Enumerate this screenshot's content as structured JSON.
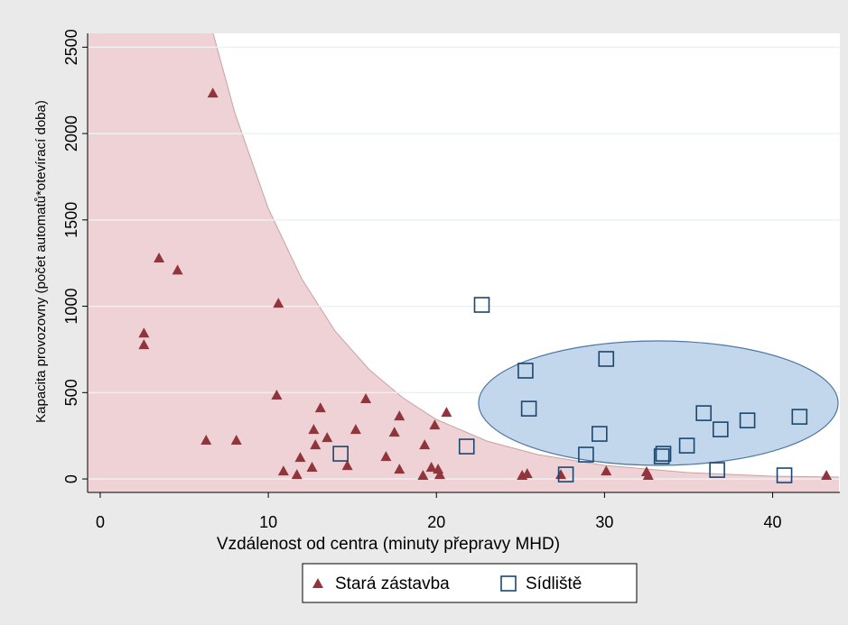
{
  "chart_data": {
    "type": "scatter",
    "x_label": "Vzdálenost od centra (minuty přepravy MHD)",
    "y_label": "Kapacita provozovny (počet automatů*otevírací doba)",
    "xlim": [
      -0.75,
      44
    ],
    "ylim": [
      -78,
      2580
    ],
    "xticks": [
      0,
      10,
      20,
      30,
      40
    ],
    "yticks": [
      0,
      500,
      1000,
      1500,
      2000,
      2500
    ],
    "grid": true,
    "legend": "bottom",
    "series": [
      {
        "name": "Stará zástavba",
        "color": "#90353b",
        "marker": "triangle",
        "x": [
          6.7,
          3.5,
          4.6,
          2.6,
          2.6,
          10.6,
          10.5,
          6.3,
          8.1,
          10.9,
          11.7,
          11.9,
          12.6,
          12.7,
          12.8,
          13.1,
          13.5,
          14.7,
          15.2,
          15.8,
          17.0,
          17.5,
          17.8,
          17.8,
          19.3,
          19.2,
          19.7,
          19.9,
          20.1,
          20.2,
          20.6,
          25.1,
          25.4,
          27.4,
          30.1,
          32.5,
          32.6,
          43.2
        ],
        "values": [
          2235,
          1280,
          1210,
          845,
          778,
          1018,
          486,
          225,
          225,
          47,
          26,
          125,
          68,
          287,
          198,
          412,
          240,
          78,
          287,
          465,
          130,
          271,
          365,
          57,
          198,
          21,
          68,
          313,
          57,
          26,
          386,
          21,
          31,
          26,
          47,
          42,
          21,
          21
        ]
      },
      {
        "name": "Sídliště",
        "color": "#1a476f",
        "marker": "square",
        "x": [
          22.7,
          25.3,
          30.1,
          25.5,
          21.8,
          14.3,
          27.7,
          28.9,
          29.7,
          33.4,
          33.5,
          34.9,
          35.9,
          36.9,
          36.7,
          38.5,
          40.7,
          41.6
        ],
        "values": [
          1008,
          627,
          695,
          407,
          188,
          146,
          26,
          141,
          261,
          131,
          146,
          193,
          381,
          287,
          52,
          339,
          21,
          360
        ]
      }
    ]
  }
}
